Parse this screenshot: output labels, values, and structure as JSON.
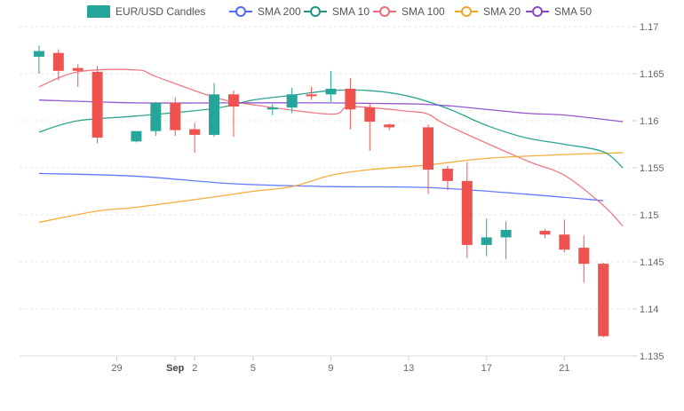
{
  "chart_data": {
    "type": "candlestick",
    "legend_position": "top",
    "legend": [
      {
        "key": "candles",
        "label": "EUR/USD Candles",
        "color": "#26a69a",
        "kind": "box"
      },
      {
        "key": "sma200",
        "label": "SMA 200",
        "color": "#4f6bff",
        "kind": "circle"
      },
      {
        "key": "sma10",
        "label": "SMA 10",
        "color": "#1a9a86",
        "kind": "circle"
      },
      {
        "key": "sma100",
        "label": "SMA 100",
        "color": "#f06b78",
        "kind": "circle"
      },
      {
        "key": "sma20",
        "label": "SMA 20",
        "color": "#f2a52b",
        "kind": "circle"
      },
      {
        "key": "sma50",
        "label": "SMA 50",
        "color": "#8a46c9",
        "kind": "circle"
      }
    ],
    "y_axis": {
      "position": "right",
      "min": 1.135,
      "max": 1.17,
      "ticks": [
        "1.17",
        "1.165",
        "1.16",
        "1.155",
        "1.15",
        "1.145",
        "1.14",
        "1.135"
      ],
      "grid": "dashed"
    },
    "x_axis": {
      "ticks": [
        {
          "day": 29,
          "label": "29",
          "bold": false
        },
        {
          "day": 32,
          "label": "Sep",
          "bold": true
        },
        {
          "day": 33,
          "label": "2",
          "bold": false
        },
        {
          "day": 36,
          "label": "5",
          "bold": false
        },
        {
          "day": 40,
          "label": "9",
          "bold": false
        },
        {
          "day": 44,
          "label": "13",
          "bold": false
        },
        {
          "day": 48,
          "label": "17",
          "bold": false
        },
        {
          "day": 52,
          "label": "21",
          "bold": false
        }
      ]
    },
    "colors": {
      "up": "#26a69a",
      "down": "#ef5350"
    },
    "candles": [
      {
        "day": 25,
        "o": 1.1668,
        "h": 1.168,
        "l": 1.165,
        "c": 1.1674
      },
      {
        "day": 26,
        "o": 1.1672,
        "h": 1.1676,
        "l": 1.1643,
        "c": 1.1653
      },
      {
        "day": 27,
        "o": 1.1656,
        "h": 1.166,
        "l": 1.1636,
        "c": 1.1653
      },
      {
        "day": 28,
        "o": 1.1652,
        "h": 1.1658,
        "l": 1.1576,
        "c": 1.1582
      },
      {
        "day": 30,
        "o": 1.1578,
        "h": 1.1589,
        "l": 1.1577,
        "c": 1.1589
      },
      {
        "day": 31,
        "o": 1.1589,
        "h": 1.162,
        "l": 1.1584,
        "c": 1.1619
      },
      {
        "day": 32,
        "o": 1.1619,
        "h": 1.1625,
        "l": 1.1584,
        "c": 1.159
      },
      {
        "day": 33,
        "o": 1.1591,
        "h": 1.1598,
        "l": 1.1566,
        "c": 1.1585
      },
      {
        "day": 34,
        "o": 1.1585,
        "h": 1.164,
        "l": 1.1583,
        "c": 1.1628
      },
      {
        "day": 35,
        "o": 1.1628,
        "h": 1.1632,
        "l": 1.1583,
        "c": 1.1615
      },
      {
        "day": 37,
        "o": 1.1612,
        "h": 1.1618,
        "l": 1.1606,
        "c": 1.1614
      },
      {
        "day": 38,
        "o": 1.1614,
        "h": 1.1635,
        "l": 1.1608,
        "c": 1.1628
      },
      {
        "day": 39,
        "o": 1.1628,
        "h": 1.1636,
        "l": 1.1622,
        "c": 1.1626
      },
      {
        "day": 40,
        "o": 1.1628,
        "h": 1.1653,
        "l": 1.162,
        "c": 1.1634
      },
      {
        "day": 41,
        "o": 1.1634,
        "h": 1.1645,
        "l": 1.1591,
        "c": 1.1612
      },
      {
        "day": 42,
        "o": 1.1614,
        "h": 1.1618,
        "l": 1.1568,
        "c": 1.1599
      },
      {
        "day": 43,
        "o": 1.1596,
        "h": 1.1597,
        "l": 1.159,
        "c": 1.1593
      },
      {
        "day": 45,
        "o": 1.1593,
        "h": 1.1596,
        "l": 1.1522,
        "c": 1.1548
      },
      {
        "day": 46,
        "o": 1.1549,
        "h": 1.1552,
        "l": 1.1526,
        "c": 1.1536
      },
      {
        "day": 47,
        "o": 1.1536,
        "h": 1.1556,
        "l": 1.1454,
        "c": 1.1468
      },
      {
        "day": 48,
        "o": 1.1468,
        "h": 1.1496,
        "l": 1.1456,
        "c": 1.1476
      },
      {
        "day": 49,
        "o": 1.1476,
        "h": 1.1493,
        "l": 1.1453,
        "c": 1.1484
      },
      {
        "day": 51,
        "o": 1.1483,
        "h": 1.1485,
        "l": 1.1475,
        "c": 1.1479
      },
      {
        "day": 52,
        "o": 1.1479,
        "h": 1.1495,
        "l": 1.146,
        "c": 1.1463
      },
      {
        "day": 53,
        "o": 1.1465,
        "h": 1.1478,
        "l": 1.1428,
        "c": 1.1448
      },
      {
        "day": 54,
        "o": 1.1448,
        "h": 1.1449,
        "l": 1.137,
        "c": 1.1371
      }
    ],
    "series": [
      {
        "key": "sma200",
        "points": [
          [
            25,
            1.1544
          ],
          [
            30,
            1.1541
          ],
          [
            35,
            1.1533
          ],
          [
            40,
            1.153
          ],
          [
            45,
            1.1529
          ],
          [
            50,
            1.1522
          ],
          [
            54,
            1.1515
          ]
        ]
      },
      {
        "key": "sma100",
        "points": [
          [
            25,
            1.1636
          ],
          [
            27,
            1.1652
          ],
          [
            30,
            1.1654
          ],
          [
            31,
            1.1647
          ],
          [
            34,
            1.1625
          ],
          [
            36,
            1.1617
          ],
          [
            40,
            1.1607
          ],
          [
            41,
            1.1615
          ],
          [
            44,
            1.161
          ],
          [
            45,
            1.1607
          ],
          [
            46,
            1.1595
          ],
          [
            50,
            1.1558
          ],
          [
            52,
            1.1542
          ],
          [
            54,
            1.151
          ],
          [
            55,
            1.1488
          ]
        ]
      },
      {
        "key": "sma20",
        "points": [
          [
            25,
            1.1492
          ],
          [
            28,
            1.1504
          ],
          [
            30,
            1.1508
          ],
          [
            34,
            1.1519
          ],
          [
            36,
            1.1525
          ],
          [
            38,
            1.153
          ],
          [
            40,
            1.1542
          ],
          [
            42,
            1.1548
          ],
          [
            45,
            1.1553
          ],
          [
            48,
            1.156
          ],
          [
            52,
            1.1564
          ],
          [
            55,
            1.1566
          ]
        ]
      },
      {
        "key": "sma10",
        "points": [
          [
            25,
            1.1588
          ],
          [
            27,
            1.16
          ],
          [
            30,
            1.1605
          ],
          [
            34,
            1.1613
          ],
          [
            36,
            1.1622
          ],
          [
            38,
            1.1627
          ],
          [
            40,
            1.1632
          ],
          [
            42,
            1.1632
          ],
          [
            44,
            1.1626
          ],
          [
            46,
            1.1613
          ],
          [
            48,
            1.1595
          ],
          [
            50,
            1.1582
          ],
          [
            52,
            1.1575
          ],
          [
            54,
            1.1567
          ],
          [
            55,
            1.155
          ]
        ]
      },
      {
        "key": "sma50",
        "points": [
          [
            25,
            1.1622
          ],
          [
            30,
            1.1619
          ],
          [
            35,
            1.1619
          ],
          [
            40,
            1.1619
          ],
          [
            44,
            1.1618
          ],
          [
            46,
            1.1616
          ],
          [
            50,
            1.1608
          ],
          [
            52,
            1.1606
          ],
          [
            55,
            1.1599
          ]
        ]
      }
    ]
  }
}
